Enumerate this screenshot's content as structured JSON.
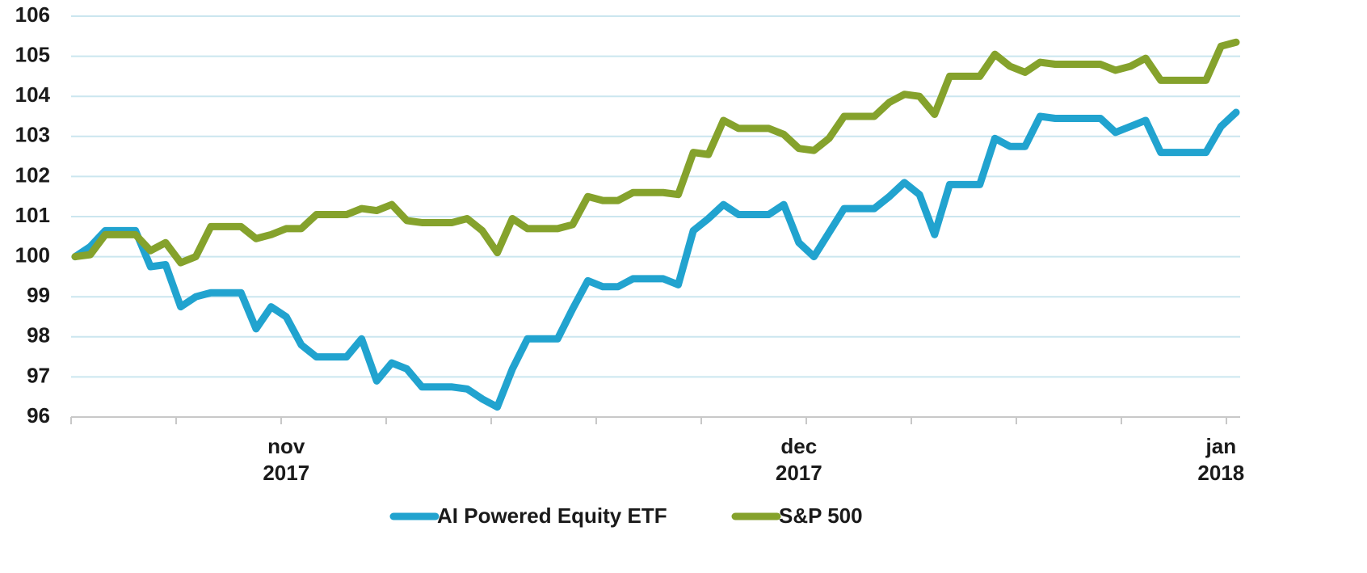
{
  "chart_data": {
    "type": "line",
    "categories": [
      null,
      null,
      null,
      null,
      null,
      null,
      null,
      null,
      null,
      null,
      null,
      null,
      null,
      null,
      "nov 2017",
      null,
      null,
      null,
      null,
      null,
      null,
      null,
      null,
      null,
      null,
      null,
      null,
      null,
      null,
      null,
      null,
      null,
      null,
      null,
      null,
      null,
      null,
      null,
      null,
      null,
      null,
      null,
      null,
      null,
      null,
      null,
      null,
      null,
      "dec 2017",
      null,
      null,
      null,
      null,
      null,
      null,
      null,
      null,
      null,
      null,
      null,
      null,
      null,
      null,
      null,
      null,
      null,
      null,
      null,
      null,
      null,
      null,
      null,
      null,
      null,
      null,
      null,
      "jan 2018",
      null
    ],
    "series": [
      {
        "name": "AI Powered Equity ETF",
        "color": "#21a3cf",
        "values": [
          100,
          100.25,
          100.65,
          100.65,
          100.65,
          99.75,
          99.8,
          98.75,
          99,
          99.1,
          99.1,
          99.1,
          98.2,
          98.75,
          98.5,
          97.8,
          97.5,
          97.5,
          97.5,
          97.95,
          96.9,
          97.35,
          97.2,
          96.75,
          96.75,
          96.75,
          96.7,
          96.45,
          96.25,
          97.2,
          97.95,
          97.95,
          97.95,
          98.7,
          99.4,
          99.25,
          99.25,
          99.45,
          99.45,
          99.45,
          99.3,
          100.65,
          100.95,
          101.3,
          101.05,
          101.05,
          101.05,
          101.3,
          100.35,
          100,
          100.6,
          101.2,
          101.2,
          101.2,
          101.5,
          101.85,
          101.55,
          100.55,
          101.8,
          101.8,
          101.8,
          102.95,
          102.75,
          102.75,
          103.5,
          103.45,
          103.45,
          103.45,
          103.45,
          103.1,
          103.25,
          103.4,
          102.6,
          102.6,
          102.6,
          102.6,
          103.25,
          103.6
        ]
      },
      {
        "name": "S&P 500",
        "color": "#85a22c",
        "values": [
          100,
          100.05,
          100.55,
          100.55,
          100.55,
          100.15,
          100.35,
          99.85,
          100,
          100.75,
          100.75,
          100.75,
          100.45,
          100.55,
          100.7,
          100.7,
          101.05,
          101.05,
          101.05,
          101.2,
          101.15,
          101.3,
          100.9,
          100.85,
          100.85,
          100.85,
          100.95,
          100.65,
          100.1,
          100.95,
          100.7,
          100.7,
          100.7,
          100.8,
          101.5,
          101.4,
          101.4,
          101.6,
          101.6,
          101.6,
          101.55,
          102.6,
          102.55,
          103.4,
          103.2,
          103.2,
          103.2,
          103.05,
          102.7,
          102.65,
          102.95,
          103.5,
          103.5,
          103.5,
          103.85,
          104.05,
          104,
          103.55,
          104.5,
          104.5,
          104.5,
          105.05,
          104.75,
          104.6,
          104.85,
          104.8,
          104.8,
          104.8,
          104.8,
          104.65,
          104.75,
          104.95,
          104.4,
          104.4,
          104.4,
          104.4,
          105.25,
          105.35
        ]
      }
    ],
    "ylim": [
      96,
      106
    ],
    "yticks": [
      96,
      97,
      98,
      99,
      100,
      101,
      102,
      103,
      104,
      105,
      106
    ],
    "grid": true,
    "legend": "bottom"
  }
}
